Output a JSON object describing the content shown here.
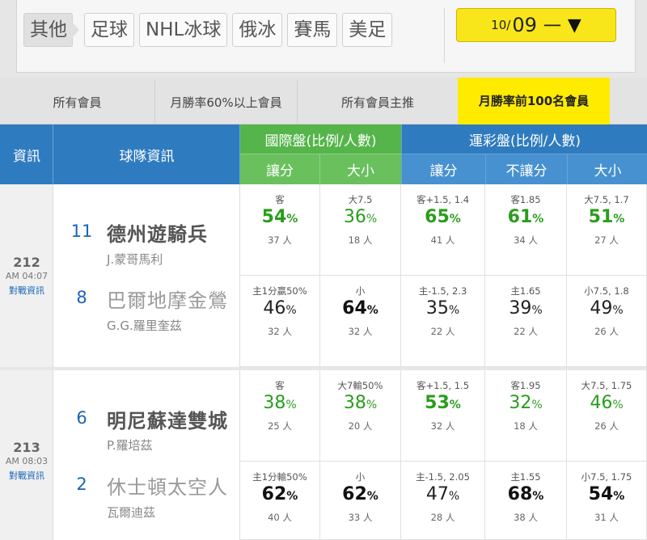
{
  "sports": {
    "tabs": [
      {
        "label": "其他",
        "active": true
      },
      {
        "label": "足球",
        "active": false
      },
      {
        "label": "NHL冰球",
        "active": false
      },
      {
        "label": "俄冰",
        "active": false
      },
      {
        "label": "賽馬",
        "active": false
      },
      {
        "label": "美足",
        "active": false
      }
    ],
    "date_month": "10",
    "date_slash": "/",
    "date_day": "09",
    "date_dash": "一",
    "date_arrow": "▼"
  },
  "filters": [
    {
      "label": "所有會員",
      "active": false
    },
    {
      "label": "月勝率60%以上會員",
      "active": false
    },
    {
      "label": "所有會員主推",
      "active": false
    },
    {
      "label": "月勝率前100名會員",
      "active": true
    }
  ],
  "header": {
    "info": "資訊",
    "team_info": "球隊資訊",
    "intl_title": "國際盤(比例/人數)",
    "intl_spread": "讓分",
    "intl_total": "大小",
    "sport_title": "運彩盤(比例/人數)",
    "sport_spread": "讓分",
    "sport_ml": "不讓分",
    "sport_total": "大小"
  },
  "colors": {
    "accent_yellow": "#ffeb00",
    "header_blue": "#2f7bbf",
    "header_green": "#55b54a",
    "pct_green": "#2a9d1c"
  },
  "matches": [
    {
      "number": "212",
      "time": "AM 04:07",
      "h2h": "對戰資訊",
      "away": {
        "rank": "11",
        "name": "德州遊騎兵",
        "pitcher": "J.蒙哥馬利"
      },
      "home": {
        "rank": "8",
        "name": "巴爾地摩金鶯",
        "pitcher": "G.G.羅里奎茲"
      },
      "rows": [
        [
          {
            "label": "客",
            "pct": "54",
            "sign": "%",
            "people": "37 人",
            "style": "greenb"
          },
          {
            "label": "大7.5",
            "pct": "36",
            "sign": "%",
            "people": "18 人",
            "style": "green"
          },
          {
            "label": "客+1.5, 1.4",
            "pct": "65",
            "sign": "%",
            "people": "41 人",
            "style": "greenb"
          },
          {
            "label": "客1.85",
            "pct": "61",
            "sign": "%",
            "people": "34 人",
            "style": "greenb"
          },
          {
            "label": "大7.5, 1.7",
            "pct": "51",
            "sign": "%",
            "people": "27 人",
            "style": "greenb"
          }
        ],
        [
          {
            "label": "主1分贏50%",
            "pct": "46",
            "sign": "%",
            "people": "32 人",
            "style": "black"
          },
          {
            "label": "小",
            "pct": "64",
            "sign": "%",
            "people": "32 人",
            "style": "blackb"
          },
          {
            "label": "主-1.5, 2.3",
            "pct": "35",
            "sign": "%",
            "people": "22 人",
            "style": "black"
          },
          {
            "label": "主1.65",
            "pct": "39",
            "sign": "%",
            "people": "22 人",
            "style": "black"
          },
          {
            "label": "小7.5, 1.8",
            "pct": "49",
            "sign": "%",
            "people": "26 人",
            "style": "black"
          }
        ]
      ]
    },
    {
      "number": "213",
      "time": "AM 08:03",
      "h2h": "對戰資訊",
      "away": {
        "rank": "6",
        "name": "明尼蘇達雙城",
        "pitcher": "P.羅培茲"
      },
      "home": {
        "rank": "2",
        "name": "休士頓太空人",
        "pitcher": "瓦爾迪茲"
      },
      "rows": [
        [
          {
            "label": "客",
            "pct": "38",
            "sign": "%",
            "people": "25 人",
            "style": "green"
          },
          {
            "label": "大7輸50%",
            "pct": "38",
            "sign": "%",
            "people": "20 人",
            "style": "green"
          },
          {
            "label": "客+1.5, 1.5",
            "pct": "53",
            "sign": "%",
            "people": "32 人",
            "style": "greenb"
          },
          {
            "label": "客1.95",
            "pct": "32",
            "sign": "%",
            "people": "18 人",
            "style": "green"
          },
          {
            "label": "大7.5, 1.75",
            "pct": "46",
            "sign": "%",
            "people": "26 人",
            "style": "green"
          }
        ],
        [
          {
            "label": "主1分輸50%",
            "pct": "62",
            "sign": "%",
            "people": "40 人",
            "style": "blackb"
          },
          {
            "label": "小",
            "pct": "62",
            "sign": "%",
            "people": "33 人",
            "style": "blackb"
          },
          {
            "label": "主-1.5, 2.05",
            "pct": "47",
            "sign": "%",
            "people": "28 人",
            "style": "black"
          },
          {
            "label": "主1.55",
            "pct": "68",
            "sign": "%",
            "people": "38 人",
            "style": "blackb"
          },
          {
            "label": "小7.5, 1.75",
            "pct": "54",
            "sign": "%",
            "people": "31 人",
            "style": "blackb"
          }
        ]
      ]
    }
  ]
}
